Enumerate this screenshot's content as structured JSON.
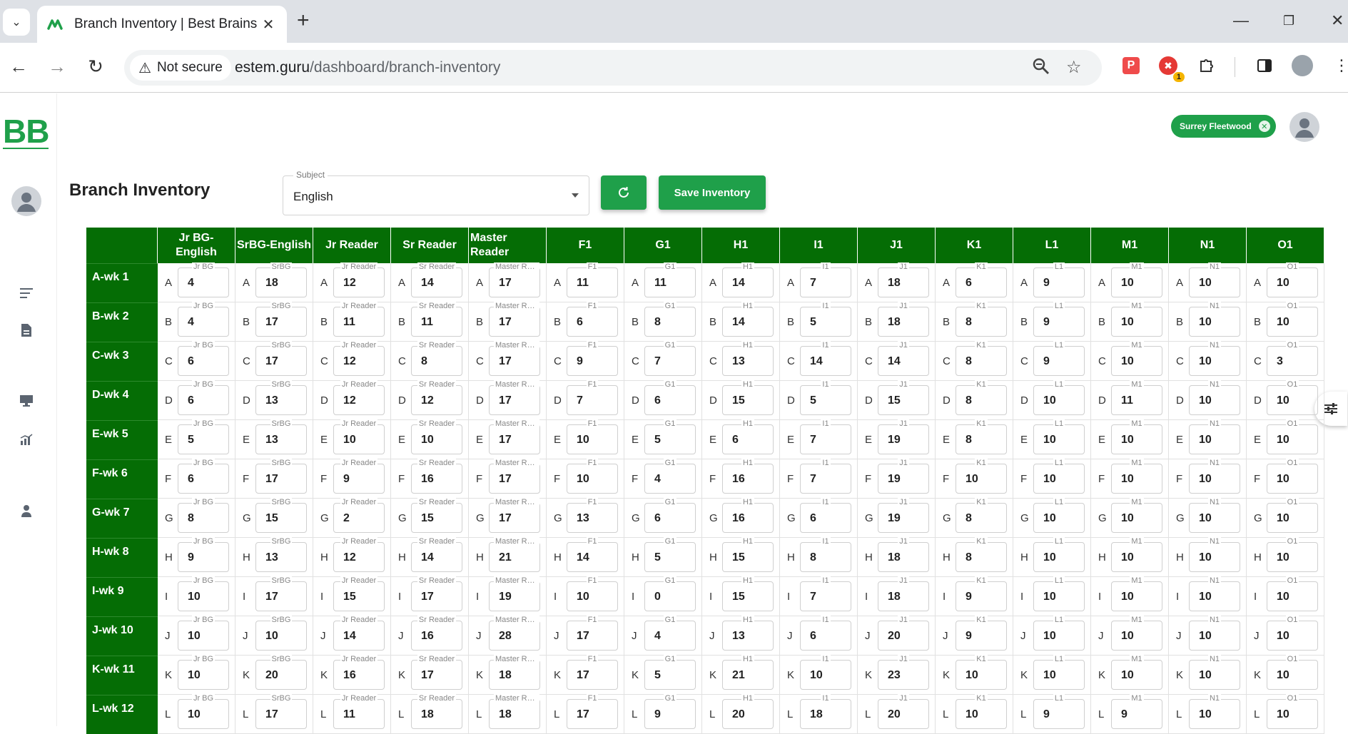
{
  "browser": {
    "tab_title": "Branch Inventory | Best Brains",
    "security_label": "Not secure",
    "url_domain": "estem.guru",
    "url_path": "/dashboard/branch-inventory",
    "extension_badge": "1"
  },
  "app": {
    "logo": "BB",
    "location_chip": "Surrey Fleetwood",
    "page_title": "Branch Inventory",
    "subject_label": "Subject",
    "subject_value": "English",
    "save_label": "Save Inventory"
  },
  "columns": [
    {
      "header": "Jr BG-English",
      "tag": "Jr BG"
    },
    {
      "header": "SrBG-English",
      "tag": "SrBG"
    },
    {
      "header": "Jr Reader",
      "tag": "Jr Reader"
    },
    {
      "header": "Sr Reader",
      "tag": "Sr Reader"
    },
    {
      "header": "Master Reader",
      "tag": "Master Reader"
    },
    {
      "header": "F1",
      "tag": "F1"
    },
    {
      "header": "G1",
      "tag": "G1"
    },
    {
      "header": "H1",
      "tag": "H1"
    },
    {
      "header": "I1",
      "tag": "I1"
    },
    {
      "header": "J1",
      "tag": "J1"
    },
    {
      "header": "K1",
      "tag": "K1"
    },
    {
      "header": "L1",
      "tag": "L1"
    },
    {
      "header": "M1",
      "tag": "M1"
    },
    {
      "header": "N1",
      "tag": "N1"
    },
    {
      "header": "O1",
      "tag": "O1"
    }
  ],
  "rows": [
    {
      "label": "A-wk 1",
      "letter": "A",
      "values": [
        "4",
        "18",
        "12",
        "14",
        "17",
        "11",
        "11",
        "14",
        "7",
        "18",
        "6",
        "9",
        "10",
        "10",
        "10"
      ]
    },
    {
      "label": "B-wk 2",
      "letter": "B",
      "values": [
        "4",
        "17",
        "11",
        "11",
        "17",
        "6",
        "8",
        "14",
        "5",
        "18",
        "8",
        "9",
        "10",
        "10",
        "10"
      ]
    },
    {
      "label": "C-wk 3",
      "letter": "C",
      "values": [
        "6",
        "17",
        "12",
        "8",
        "17",
        "9",
        "7",
        "13",
        "14",
        "14",
        "8",
        "9",
        "10",
        "10",
        "3"
      ]
    },
    {
      "label": "D-wk 4",
      "letter": "D",
      "values": [
        "6",
        "13",
        "12",
        "12",
        "17",
        "7",
        "6",
        "15",
        "5",
        "15",
        "8",
        "10",
        "11",
        "10",
        "10"
      ]
    },
    {
      "label": "E-wk 5",
      "letter": "E",
      "values": [
        "5",
        "13",
        "10",
        "10",
        "17",
        "10",
        "5",
        "6",
        "7",
        "19",
        "8",
        "10",
        "10",
        "10",
        "10"
      ]
    },
    {
      "label": "F-wk 6",
      "letter": "F",
      "values": [
        "6",
        "17",
        "9",
        "16",
        "17",
        "10",
        "4",
        "16",
        "7",
        "19",
        "10",
        "10",
        "10",
        "10",
        "10"
      ]
    },
    {
      "label": "G-wk 7",
      "letter": "G",
      "values": [
        "8",
        "15",
        "2",
        "15",
        "17",
        "13",
        "6",
        "16",
        "6",
        "19",
        "8",
        "10",
        "10",
        "10",
        "10"
      ]
    },
    {
      "label": "H-wk 8",
      "letter": "H",
      "values": [
        "9",
        "13",
        "12",
        "14",
        "21",
        "14",
        "5",
        "15",
        "8",
        "18",
        "8",
        "10",
        "10",
        "10",
        "10"
      ]
    },
    {
      "label": "I-wk 9",
      "letter": "I",
      "values": [
        "10",
        "17",
        "15",
        "17",
        "19",
        "10",
        "0",
        "15",
        "7",
        "18",
        "9",
        "10",
        "10",
        "10",
        "10"
      ]
    },
    {
      "label": "J-wk 10",
      "letter": "J",
      "values": [
        "10",
        "10",
        "14",
        "16",
        "28",
        "17",
        "4",
        "13",
        "6",
        "20",
        "9",
        "10",
        "10",
        "10",
        "10"
      ]
    },
    {
      "label": "K-wk 11",
      "letter": "K",
      "values": [
        "10",
        "20",
        "16",
        "17",
        "18",
        "17",
        "5",
        "21",
        "10",
        "23",
        "10",
        "10",
        "10",
        "10",
        "10"
      ]
    },
    {
      "label": "L-wk 12",
      "letter": "L",
      "values": [
        "10",
        "17",
        "11",
        "18",
        "18",
        "17",
        "9",
        "20",
        "18",
        "20",
        "10",
        "9",
        "9",
        "10",
        "10"
      ]
    }
  ],
  "colors": {
    "brand_green": "#1fa04a",
    "header_green": "#056d05"
  }
}
